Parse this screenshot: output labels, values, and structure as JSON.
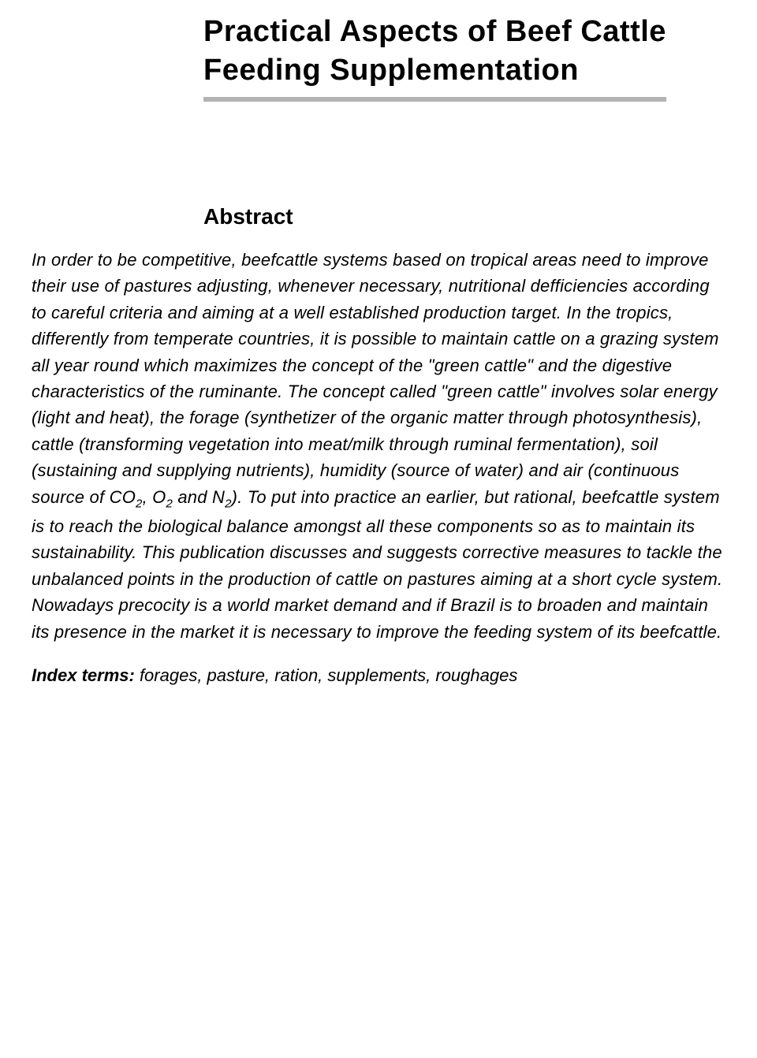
{
  "title": "Practical Aspects of Beef Cattle Feeding Supplementation",
  "abstract_heading": "Abstract",
  "abstract_body_html": "In order to be competitive, beefcattle systems based on tropical areas need to improve their use of pastures adjusting, whenever necessary, nutritional defficiencies according to careful criteria and aiming at a well established production target. In the tropics, differently from temperate countries, it is possible to maintain cattle on a grazing system all year round which maximizes the concept of the \"green cattle\" and the digestive characteristics of the ruminante. The concept called \"green cattle\" involves solar energy (light and heat), the forage (synthetizer of the organic matter through photosynthesis), cattle (transforming vegetation into meat/milk through ruminal fermentation), soil (sustaining and supplying nutrients), humidity (source of water) and air (continuous source of CO<span class=\"sub\">2</span>, O<span class=\"sub\">2</span> and N<span class=\"sub\">2</span>). To put into practice an earlier, but rational, beefcattle system is to reach the biological balance amongst all these components so as to maintain its sustainability. This publication discusses and suggests corrective measures to tackle the unbalanced points in the production of cattle on pastures aiming at a short cycle system. Nowadays precocity is a world market demand and if Brazil is to broaden and maintain its presence in the market it is necessary to improve the feeding system of its beefcattle.",
  "index_terms_label": "Index terms:",
  "index_terms_value": " forages, pasture, ration, supplements, roughages",
  "colors": {
    "background": "#ffffff",
    "text": "#000000",
    "rule": "#b3b3b3"
  },
  "typography": {
    "title_fontsize": 38,
    "heading_fontsize": 28,
    "body_fontsize": 22,
    "font_family": "Verdana"
  }
}
